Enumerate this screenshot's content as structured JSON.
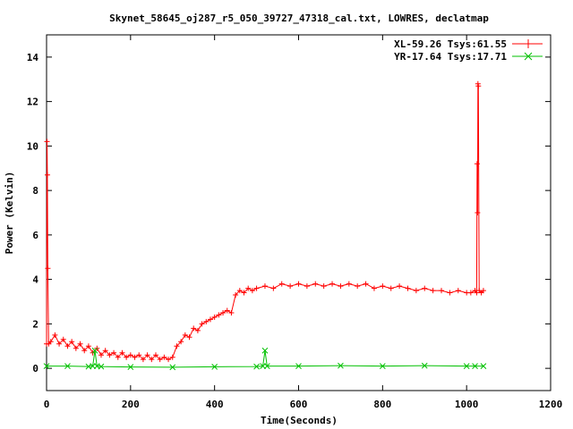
{
  "chart_data": {
    "type": "line",
    "title": "Skynet_58645_oj287_r5_050_39727_47318_cal.txt, LOWRES, declatmap",
    "xlabel": "Time(Seconds)",
    "ylabel": "Power (Kelvin)",
    "xlim": [
      0,
      1200
    ],
    "ylim": [
      -1,
      15
    ],
    "xticks": [
      0,
      200,
      400,
      600,
      800,
      1000,
      1200
    ],
    "yticks": [
      0,
      2,
      4,
      6,
      8,
      10,
      12,
      14
    ],
    "x_tick_labels": [
      "0",
      "200",
      "400",
      "600",
      "800",
      "1000",
      "1200"
    ],
    "y_tick_labels": [
      "0",
      "2",
      "4",
      "6",
      "8",
      "10",
      "12",
      "14"
    ],
    "grid": false,
    "legend_position": "top-right",
    "series": [
      {
        "name": "XL-59.26 Tsys:61.55",
        "color": "#ff0000",
        "marker": "plus",
        "x": [
          0,
          1,
          2,
          3,
          5,
          10,
          20,
          30,
          40,
          50,
          60,
          70,
          80,
          90,
          100,
          110,
          120,
          130,
          140,
          150,
          160,
          170,
          180,
          190,
          200,
          210,
          220,
          230,
          240,
          250,
          260,
          270,
          280,
          290,
          300,
          310,
          320,
          330,
          340,
          350,
          360,
          370,
          380,
          390,
          400,
          410,
          420,
          430,
          440,
          450,
          460,
          470,
          480,
          490,
          500,
          520,
          540,
          560,
          580,
          600,
          620,
          640,
          660,
          680,
          700,
          720,
          740,
          760,
          780,
          800,
          820,
          840,
          860,
          880,
          900,
          920,
          940,
          960,
          980,
          1000,
          1010,
          1020,
          1024,
          1025,
          1026,
          1027,
          1028,
          1030,
          1035,
          1040
        ],
        "y": [
          1.1,
          10.2,
          8.7,
          4.5,
          1.1,
          1.2,
          1.5,
          1.1,
          1.3,
          1.0,
          1.2,
          0.9,
          1.1,
          0.8,
          1.0,
          0.7,
          0.9,
          0.6,
          0.8,
          0.6,
          0.7,
          0.5,
          0.7,
          0.5,
          0.6,
          0.5,
          0.6,
          0.4,
          0.6,
          0.4,
          0.6,
          0.4,
          0.5,
          0.4,
          0.5,
          1.0,
          1.2,
          1.5,
          1.4,
          1.8,
          1.7,
          2.0,
          2.1,
          2.2,
          2.3,
          2.4,
          2.5,
          2.6,
          2.5,
          3.3,
          3.5,
          3.4,
          3.6,
          3.5,
          3.6,
          3.7,
          3.6,
          3.8,
          3.7,
          3.8,
          3.7,
          3.8,
          3.7,
          3.8,
          3.7,
          3.8,
          3.7,
          3.8,
          3.6,
          3.7,
          3.6,
          3.7,
          3.6,
          3.5,
          3.6,
          3.5,
          3.5,
          3.4,
          3.5,
          3.4,
          3.4,
          3.5,
          3.4,
          9.2,
          7.0,
          12.8,
          12.7,
          3.5,
          3.4,
          3.5
        ]
      },
      {
        "name": "YR-17.64 Tsys:17.71",
        "color": "#00c000",
        "marker": "cross",
        "x": [
          0,
          50,
          100,
          110,
          115,
          120,
          130,
          200,
          300,
          400,
          500,
          515,
          520,
          525,
          600,
          700,
          800,
          900,
          1000,
          1020,
          1040
        ],
        "y": [
          0.1,
          0.1,
          0.08,
          0.1,
          0.8,
          0.1,
          0.08,
          0.06,
          0.05,
          0.07,
          0.08,
          0.1,
          0.8,
          0.1,
          0.1,
          0.12,
          0.1,
          0.12,
          0.1,
          0.1,
          0.1
        ]
      }
    ]
  }
}
